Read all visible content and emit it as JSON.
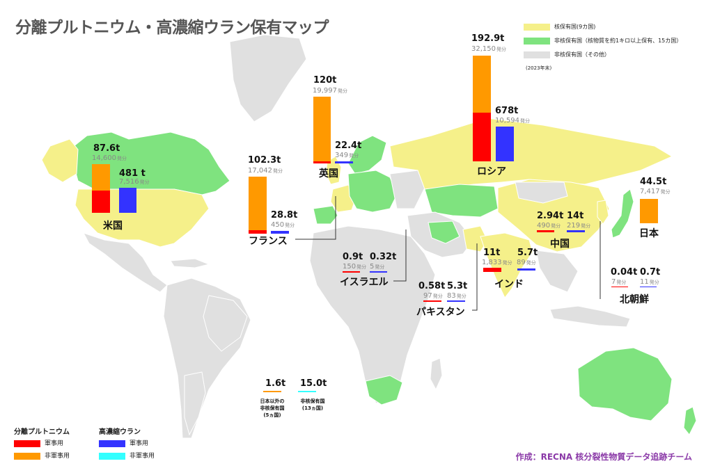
{
  "title": "分離プルトニウム・高濃縮ウラン保有マップ",
  "colors": {
    "nuclear_state": "#f5f08a",
    "nonnuclear_1kg": "#7fe37f",
    "nonnuclear_other": "#e0e0e0",
    "pu_military": "#ff0000",
    "pu_civil": "#ff9900",
    "heu_military": "#3333ff",
    "heu_civil": "#33ffff"
  },
  "legend": {
    "items": [
      {
        "label": "核保有国(9カ国)"
      },
      {
        "label": "非核保有国（核物質を約1キロ以上保有、15カ国）"
      },
      {
        "label": "非核保有国（その他）"
      }
    ],
    "note": "(2023年末)"
  },
  "kinds": {
    "pu_title": "分離プルトニウム",
    "heu_title": "高濃縮ウラン",
    "military": "軍事用",
    "civil": "非軍事用"
  },
  "countries": {
    "usa": {
      "name": "米国",
      "pu_tonnes": "87.6t",
      "pu_bombs": "14,600",
      "heu_tonnes": "481 t",
      "heu_bombs": "7,516"
    },
    "uk": {
      "name": "英国",
      "pu_tonnes": "120t",
      "pu_bombs": "19,997",
      "heu_tonnes": "22.4t",
      "heu_bombs": "349"
    },
    "france": {
      "name": "フランス",
      "pu_tonnes": "102.3t",
      "pu_bombs": "17,042",
      "heu_tonnes": "28.8t",
      "heu_bombs": "450"
    },
    "russia": {
      "name": "ロシア",
      "pu_tonnes": "192.9t",
      "pu_bombs": "32,150",
      "heu_tonnes": "678t",
      "heu_bombs": "10,594"
    },
    "japan": {
      "name": "日本",
      "pu_tonnes": "44.5t",
      "pu_bombs": "7,417"
    },
    "china": {
      "name": "中国",
      "pu_tonnes": "2.94t",
      "pu_bombs": "490",
      "heu_tonnes": "14t",
      "heu_bombs": "219"
    },
    "israel": {
      "name": "イスラエル",
      "pu_tonnes": "0.9t",
      "pu_bombs": "150",
      "heu_tonnes": "0.32t",
      "heu_bombs": "5"
    },
    "india": {
      "name": "インド",
      "pu_tonnes": "11t",
      "pu_bombs": "1,833",
      "heu_tonnes": "5.7t",
      "heu_bombs": "89"
    },
    "pakistan": {
      "name": "パキスタン",
      "pu_tonnes": "0.58t",
      "pu_bombs": "97",
      "heu_tonnes": "5.3t",
      "heu_bombs": "83"
    },
    "nk": {
      "name": "北朝鮮",
      "pu_tonnes": "0.04t",
      "pu_bombs": "7",
      "heu_tonnes": "0.7t",
      "heu_bombs": "11"
    },
    "others": {
      "pu_tonnes": "1.6t",
      "pu_label_1": "日本以外の",
      "pu_label_2": "非核保有国",
      "pu_label_3": "(5ヵ国)",
      "heu_tonnes": "15.0t",
      "heu_label_1": "非核保有国",
      "heu_label_2": "(13ヵ国)"
    }
  },
  "unit": "発分",
  "credit": "作成：RECNA 核分裂性物質データ追跡チーム"
}
